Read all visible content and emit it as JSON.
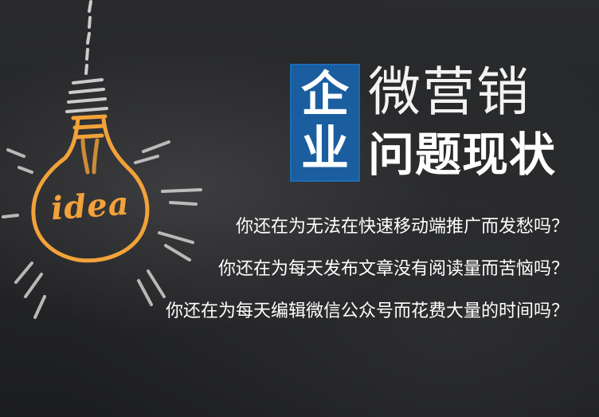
{
  "badge": {
    "char_top": "企",
    "char_bottom": "业",
    "color": "#1a5ea0"
  },
  "title": {
    "line1": "微营销",
    "line2": "问题现状"
  },
  "bulb": {
    "label": "idea",
    "color": "#f2a23a"
  },
  "questions": [
    "你还在为无法在快速移动端推广而发愁吗？",
    "你还在为每天发布文章没有阅读量而苦恼吗？",
    "你还在为每天编辑微信公众号而花费大量的时间吗？"
  ]
}
